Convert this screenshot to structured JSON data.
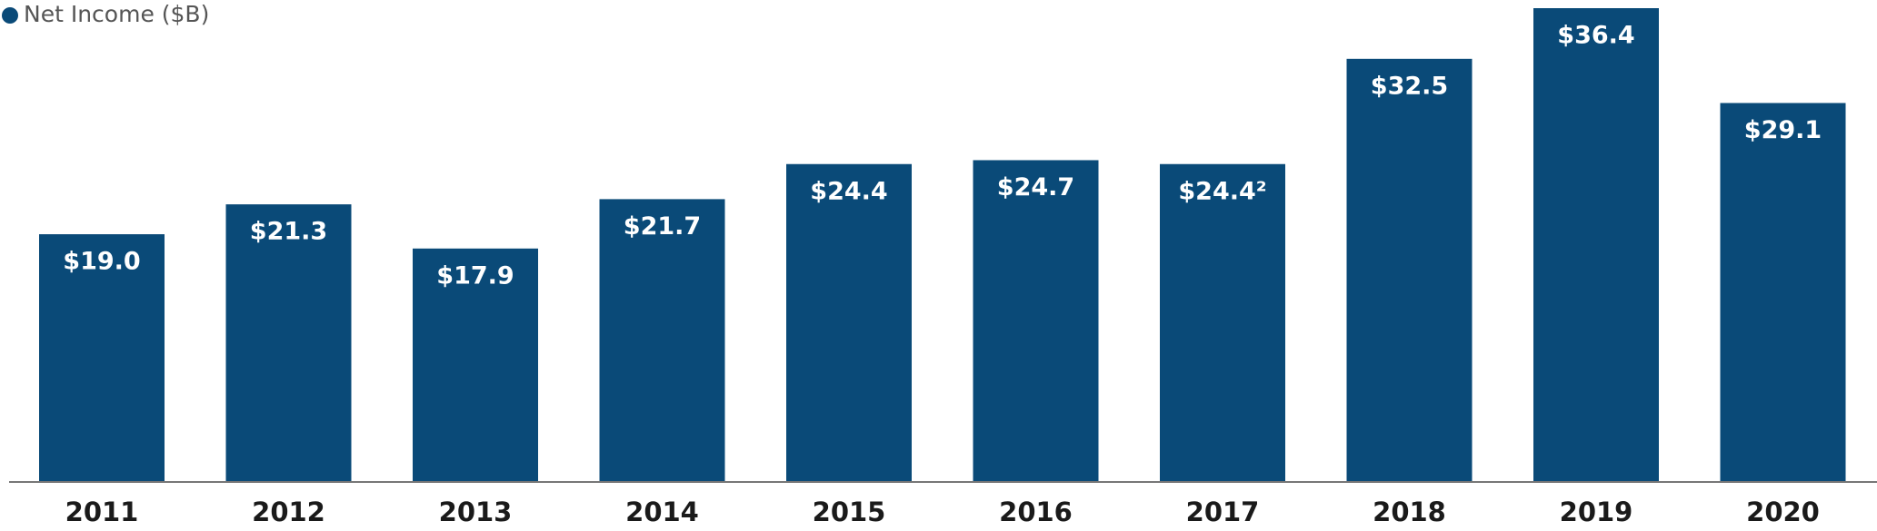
{
  "chart_data": {
    "type": "bar",
    "legend": "Net Income ($B)",
    "color": "#0a4a78",
    "categories": [
      "2011",
      "2012",
      "2013",
      "2014",
      "2015",
      "2016",
      "2017",
      "2018",
      "2019",
      "2020"
    ],
    "values": [
      19.0,
      21.3,
      17.9,
      21.7,
      24.4,
      24.7,
      24.4,
      32.5,
      36.4,
      29.1
    ],
    "value_labels": [
      "$19.0",
      "$21.3",
      "$17.9",
      "$21.7",
      "$24.4",
      "$24.7",
      "$24.4²",
      "$32.5",
      "$36.4",
      "$29.1"
    ]
  }
}
